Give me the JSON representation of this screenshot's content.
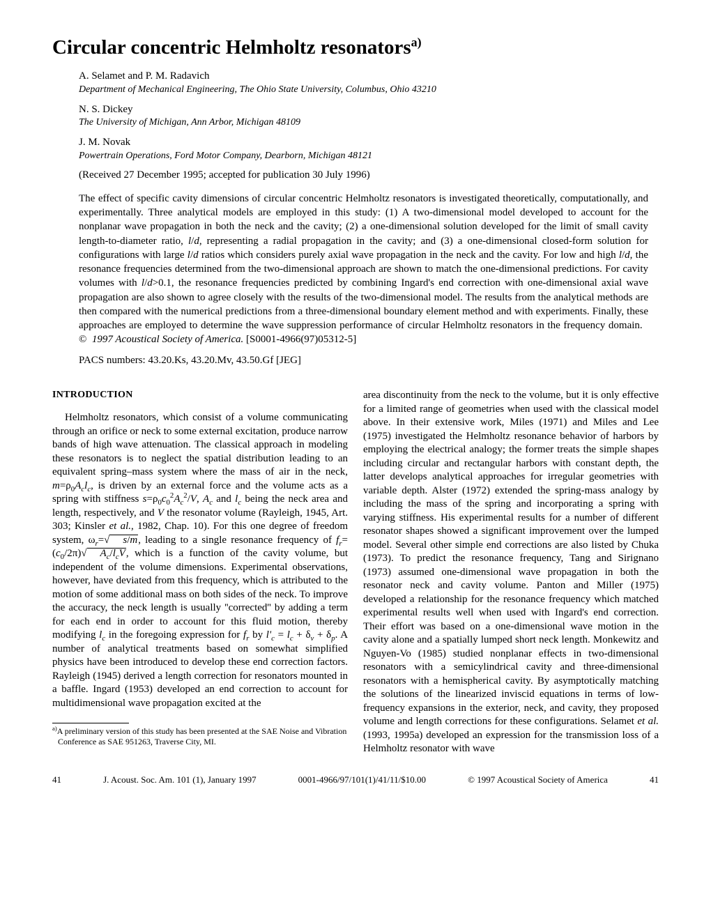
{
  "title": "Circular concentric Helmholtz resonators",
  "title_superscript": "a)",
  "authors": [
    {
      "names": "A. Selamet and P. M. Radavich",
      "affiliation": "Department of Mechanical Engineering, The Ohio State University, Columbus, Ohio 43210"
    },
    {
      "names": "N. S. Dickey",
      "affiliation": "The University of Michigan, Ann Arbor, Michigan 48109"
    },
    {
      "names": "J. M. Novak",
      "affiliation": "Powertrain Operations, Ford Motor Company, Dearborn, Michigan 48121"
    }
  ],
  "received": "(Received 27 December 1995; accepted for publication 30 July 1996)",
  "abstract": "The effect of specific cavity dimensions of circular concentric Helmholtz resonators is investigated theoretically, computationally, and experimentally. Three analytical models are employed in this study: (1) A two-dimensional model developed to account for the nonplanar wave propagation in both the neck and the cavity; (2) a one-dimensional solution developed for the limit of small cavity length-to-diameter ratio, l/d, representing a radial propagation in the cavity; and (3) a one-dimensional closed-form solution for configurations with large l/d ratios which considers purely axial wave propagation in the neck and the cavity. For low and high l/d, the resonance frequencies determined from the two-dimensional approach are shown to match the one-dimensional predictions. For cavity volumes with l/d>0.1, the resonance frequencies predicted by combining Ingard's end correction with one-dimensional axial wave propagation are also shown to agree closely with the results of the two-dimensional model. The results from the analytical methods are then compared with the numerical predictions from a three-dimensional boundary element method and with experiments. Finally, these approaches are employed to determine the wave suppression performance of circular Helmholtz resonators in the frequency domain.",
  "copyright": "© 1997 Acoustical Society of America.",
  "code": "[S0001-4966(97)05312-5]",
  "pacs": "PACS numbers: 43.20.Ks, 43.20.Mv, 43.50.Gf [JEG]",
  "section_heading": "INTRODUCTION",
  "footnote_marker": "a)",
  "footnote": "A preliminary version of this study has been presented at the SAE Noise and Vibration Conference as SAE 951263, Traverse City, MI.",
  "footer": {
    "page_left": "41",
    "journal": "J. Acoust. Soc. Am. 101 (1), January 1997",
    "issn": "0001-4966/97/101(1)/41/11/$10.00",
    "copyright": "© 1997 Acoustical Society of America",
    "page_right": "41"
  },
  "styling": {
    "body_width": 1020,
    "body_height": 1320,
    "title_fontsize": 29,
    "body_fontsize": 15,
    "footnote_fontsize": 12,
    "footer_fontsize": 13,
    "background_color": "#ffffff",
    "text_color": "#000000",
    "font_family": "Times New Roman"
  }
}
